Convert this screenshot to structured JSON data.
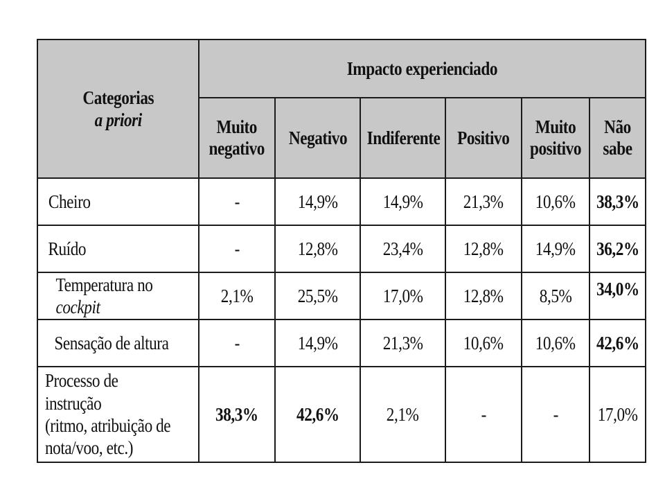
{
  "table": {
    "category_header": {
      "line1": "Categorias",
      "line2": "a priori"
    },
    "group_header": "Impacto experienciado",
    "columns": [
      {
        "line1": "Muito",
        "line2": "negativo"
      },
      {
        "line1": "Negativo",
        "line2": ""
      },
      {
        "line1": "Indiferente",
        "line2": ""
      },
      {
        "line1": "Positivo",
        "line2": ""
      },
      {
        "line1": "Muito",
        "line2": "positivo"
      },
      {
        "line1": "Não",
        "line2": "sabe"
      }
    ],
    "rows": [
      {
        "label": "Cheiro",
        "label_suffix": "",
        "cells": [
          "-",
          "14,9%",
          "14,9%",
          "21,3%",
          "10,6%",
          "38,3%"
        ]
      },
      {
        "label": "Ruído",
        "label_suffix": "",
        "cells": [
          "-",
          "12,8%",
          "23,4%",
          "12,8%",
          "14,9%",
          "36,2%"
        ]
      },
      {
        "label": "Temperatura no ",
        "label_suffix": "cockpit",
        "cells": [
          "2,1%",
          "25,5%",
          "17,0%",
          "12,8%",
          "8,5%",
          "34,0%"
        ]
      },
      {
        "label": "Sensação de altura",
        "label_suffix": "",
        "cells": [
          "-",
          "14,9%",
          "21,3%",
          "10,6%",
          "10,6%",
          "42,6%"
        ]
      },
      {
        "label_lines": [
          "Processo de instrução",
          "(ritmo, atribuição de",
          "nota/voo, etc.)"
        ],
        "cells": [
          "38,3%",
          "42,6%",
          "2,1%",
          "-",
          "-",
          "17,0%"
        ]
      }
    ]
  }
}
